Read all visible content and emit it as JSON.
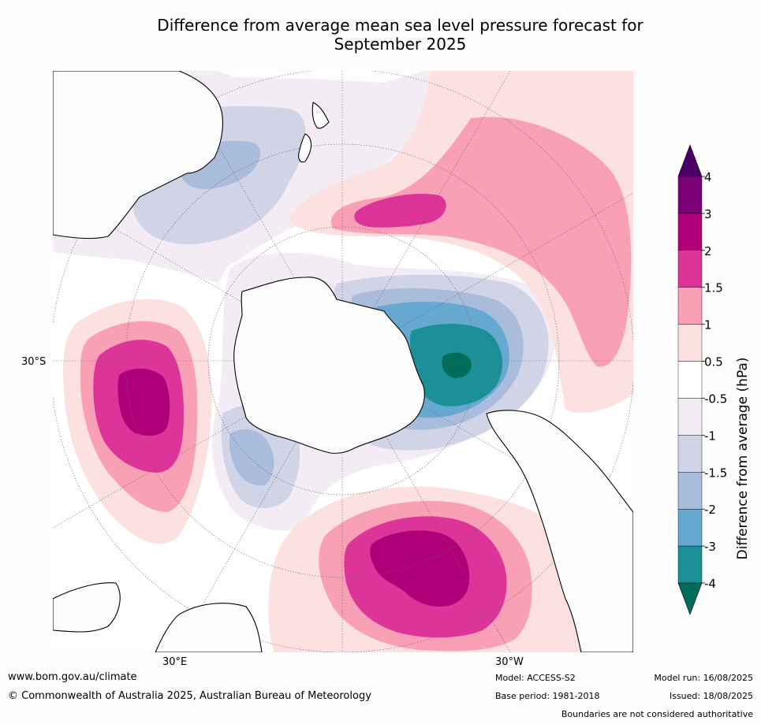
{
  "title": {
    "line1": "Difference from average mean sea level pressure forecast for",
    "line2": "September 2025"
  },
  "map": {
    "projection": "south-polar-stereographic",
    "lon_labels": {
      "left": "30°S",
      "bottom_left": "30°E",
      "bottom_right": "30°W"
    },
    "anomaly_centers_hPa": {
      "positive": [
        {
          "region": "southern Indian Ocean",
          "level": "3"
        },
        {
          "region": "south Atlantic Ocean",
          "level": "3"
        },
        {
          "region": "south Pacific Ocean",
          "level": "2"
        }
      ],
      "negative": [
        {
          "region": "Amundsen / Bellingshausen Sea",
          "level": "-4"
        }
      ]
    },
    "colors": {
      "ocean": "#ffffff",
      "coast": "#000000"
    }
  },
  "colorbar": {
    "label": "Difference from average (hPa)",
    "ticks": [
      "4",
      "3",
      "2",
      "1.5",
      "1",
      "0.5",
      "-0.5",
      "-1",
      "-1.5",
      "-2",
      "-3",
      "-4"
    ],
    "colors": [
      "#4b0068",
      "#7c0078",
      "#af0079",
      "#dc3499",
      "#f9a0b6",
      "#fde0e0",
      "#ffffff",
      "#f4ecf5",
      "#d1d3e6",
      "#a9bcdb",
      "#66a8cf",
      "#1c9097",
      "#016c59"
    ]
  },
  "footer": {
    "website": "www.bom.gov.au/climate",
    "copyright": "© Commonwealth of Australia 2025, Australian Bureau of Meteorology",
    "model": "Model: ACCESS-S2",
    "base_period": "Base period: 1981-2018",
    "model_run": "Model run: 16/08/2025",
    "issued": "Issued: 18/08/2025",
    "disclaimer": "Boundaries are not considered authoritative"
  }
}
